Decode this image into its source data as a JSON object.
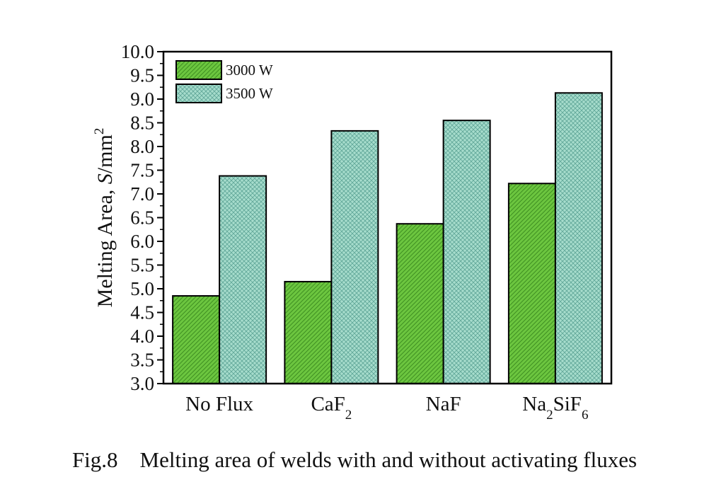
{
  "chart_data": {
    "type": "bar",
    "categories": [
      {
        "base": "No Flux",
        "sub": []
      },
      {
        "base": "CaF",
        "sub": [
          "2"
        ]
      },
      {
        "base": "NaF",
        "sub": []
      },
      {
        "base": "Na",
        "sub": [
          "2",
          "SiF",
          "6"
        ]
      }
    ],
    "series": [
      {
        "name": "3000 W",
        "values": [
          4.85,
          5.15,
          6.37,
          7.22
        ],
        "color": "#6cc63f",
        "pattern": "diagonal-hatch"
      },
      {
        "name": "3500 W",
        "values": [
          7.38,
          8.33,
          8.55,
          9.13
        ],
        "color": "#a6dccc",
        "pattern": "crosshatch"
      }
    ],
    "ylabel_main": "Melting Area, ",
    "ylabel_var": "S",
    "ylabel_unit": "/mm",
    "ylabel_sup": "2",
    "ylim": [
      3.0,
      10.0
    ],
    "yticks": [
      "3.0",
      "3.5",
      "4.0",
      "4.5",
      "5.0",
      "5.5",
      "6.0",
      "6.5",
      "7.0",
      "7.5",
      "8.0",
      "8.5",
      "9.0",
      "9.5",
      "10.0"
    ],
    "legend_position": "top-left",
    "grid": false
  },
  "caption": "Fig.8    Melting area of welds with and without activating fluxes"
}
